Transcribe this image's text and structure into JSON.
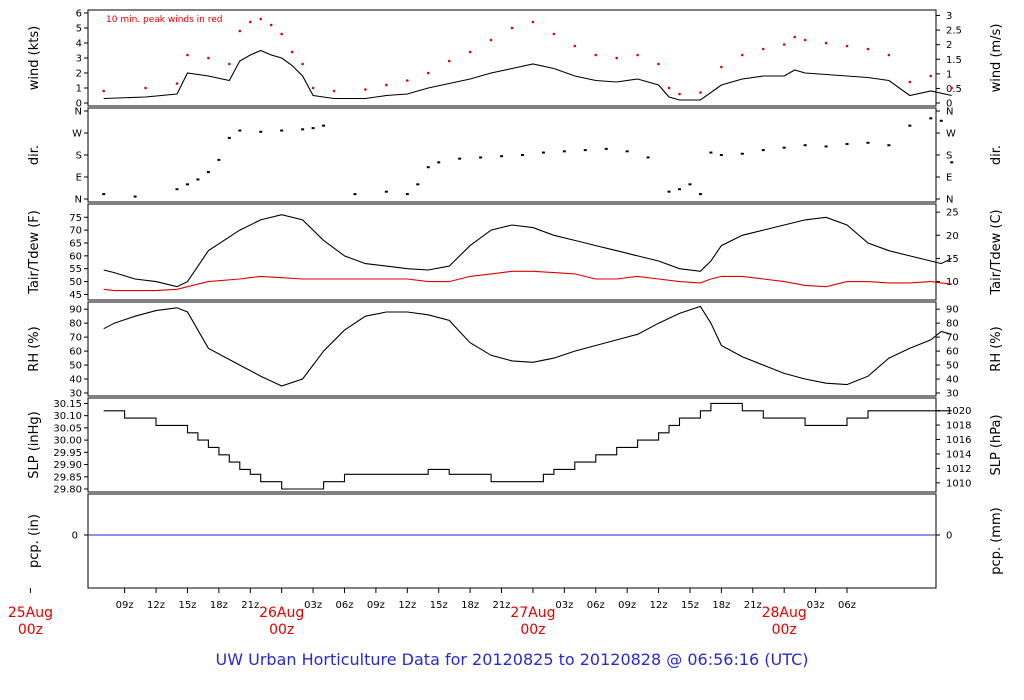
{
  "footer": "UW Urban Horticulture Data for 20120825  to  20120828 @ 06:56:16  (UTC)",
  "colors": {
    "footer": "#2a2acc",
    "date": "#e00000",
    "peak": "#e00000",
    "dew": "#e00000",
    "pcp": "#2222cc",
    "line": "#000000"
  },
  "chart_data": [
    {
      "type": "line",
      "panel": "wind",
      "ylabel": "wind (kts)",
      "ylabel_right": "wind (m/s)",
      "annotation": "10 min. peak winds in red",
      "ylim": [
        0,
        6
      ],
      "yticks": [
        "0",
        "1",
        "2",
        "3",
        "4",
        "5",
        "6"
      ],
      "yticks_right": [
        "0",
        "0.5",
        "1",
        "1.5",
        "2",
        "2.5",
        "3"
      ],
      "x_hours": [
        7,
        11,
        14,
        15,
        17,
        19,
        20,
        21,
        22,
        23,
        24,
        25,
        26,
        27,
        29,
        32,
        34,
        36,
        38,
        40,
        42,
        44,
        46,
        48,
        50,
        52,
        54,
        56,
        58,
        60,
        61,
        62,
        64,
        66,
        68,
        70,
        72,
        73,
        74,
        76,
        78,
        80,
        82,
        84,
        86,
        88
      ],
      "series": [
        {
          "name": "wind",
          "values": [
            0.3,
            0.4,
            0.6,
            2.0,
            1.8,
            1.5,
            2.8,
            3.2,
            3.5,
            3.2,
            3.0,
            2.5,
            1.8,
            0.5,
            0.3,
            0.3,
            0.5,
            0.6,
            1.0,
            1.3,
            1.6,
            2.0,
            2.3,
            2.6,
            2.3,
            1.8,
            1.5,
            1.4,
            1.6,
            1.2,
            0.4,
            0.2,
            0.2,
            1.2,
            1.6,
            1.8,
            1.8,
            2.2,
            2.0,
            1.9,
            1.8,
            1.7,
            1.5,
            0.5,
            0.8,
            0.5
          ]
        },
        {
          "name": "10 min. peak winds",
          "values": [
            0.8,
            1.0,
            1.3,
            3.2,
            3.0,
            2.6,
            4.8,
            5.4,
            5.6,
            5.2,
            4.6,
            3.4,
            2.6,
            1.0,
            0.8,
            0.9,
            1.2,
            1.5,
            2.0,
            2.8,
            3.4,
            4.2,
            5.0,
            5.4,
            4.6,
            3.8,
            3.2,
            3.0,
            3.2,
            2.6,
            1.0,
            0.6,
            0.7,
            2.4,
            3.2,
            3.6,
            3.9,
            4.4,
            4.2,
            4.0,
            3.8,
            3.6,
            3.2,
            1.4,
            1.8,
            1.0
          ]
        }
      ]
    },
    {
      "type": "scatter",
      "panel": "dir",
      "ylabel": "dir.",
      "ylabel_right": "dir.",
      "yticks": [
        "N",
        "E",
        "S",
        "W",
        "N"
      ],
      "yticks_right": [
        "N",
        "E",
        "S",
        "W",
        "N"
      ],
      "x_hours": [
        7,
        10,
        14,
        15,
        16,
        17,
        18,
        19,
        20,
        22,
        24,
        26,
        27,
        28,
        31,
        34,
        36,
        37,
        38,
        39,
        41,
        43,
        45,
        47,
        49,
        51,
        53,
        55,
        57,
        59,
        61,
        62,
        63,
        64,
        65,
        66,
        68,
        70,
        72,
        74,
        76,
        78,
        80,
        82,
        84,
        86,
        87,
        88
      ],
      "series": [
        {
          "name": "direction (deg)",
          "values": [
            20,
            10,
            40,
            60,
            80,
            110,
            160,
            250,
            280,
            275,
            280,
            285,
            290,
            300,
            20,
            30,
            20,
            60,
            130,
            150,
            165,
            170,
            175,
            180,
            190,
            195,
            200,
            205,
            195,
            170,
            30,
            40,
            60,
            20,
            190,
            180,
            185,
            200,
            210,
            220,
            215,
            225,
            230,
            220,
            300,
            330,
            320,
            150
          ]
        }
      ]
    },
    {
      "type": "line",
      "panel": "temperature",
      "ylabel": "Tair/Tdew (F)",
      "ylabel_right": "Tair/Tdew (C)",
      "ylim": [
        44,
        79
      ],
      "yticks": [
        "45",
        "50",
        "55",
        "60",
        "65",
        "70",
        "75"
      ],
      "yticks_right": [
        "10",
        "15",
        "20",
        "25"
      ],
      "x_hours": [
        7,
        8,
        10,
        12,
        14,
        15,
        17,
        20,
        22,
        24,
        26,
        28,
        30,
        32,
        34,
        36,
        38,
        40,
        42,
        44,
        46,
        48,
        50,
        52,
        54,
        56,
        58,
        60,
        62,
        64,
        65,
        66,
        68,
        70,
        72,
        74,
        76,
        78,
        80,
        82,
        84,
        86,
        87,
        88
      ],
      "series": [
        {
          "name": "Tair",
          "values": [
            54.5,
            53.5,
            51,
            50,
            48,
            50,
            62,
            70,
            74,
            76,
            74,
            66,
            60,
            57,
            56,
            55,
            54.5,
            56,
            64,
            70,
            72,
            71,
            68,
            66,
            64,
            62,
            60,
            58,
            55,
            54,
            58,
            64,
            68,
            70,
            72,
            74,
            75,
            72,
            65,
            62,
            60,
            58,
            57,
            59
          ]
        },
        {
          "name": "Tdew",
          "values": [
            47,
            46.5,
            46.5,
            46.5,
            47,
            48,
            50,
            51,
            52,
            51.5,
            51,
            51,
            51,
            51,
            51,
            51,
            50,
            50,
            52,
            53,
            54,
            54,
            53.5,
            53,
            51,
            51,
            52,
            51,
            50,
            49.5,
            51,
            52,
            52,
            51,
            50,
            48.5,
            48,
            50,
            50,
            49.5,
            49.5,
            50,
            49.5,
            49
          ]
        }
      ]
    },
    {
      "type": "line",
      "panel": "humidity",
      "ylabel": "RH (%)",
      "ylabel_right": "RH (%)",
      "ylim": [
        30,
        93
      ],
      "yticks": [
        "30",
        "40",
        "50",
        "60",
        "70",
        "80",
        "90"
      ],
      "yticks_right": [
        "30",
        "40",
        "50",
        "60",
        "70",
        "80",
        "90"
      ],
      "x_hours": [
        7,
        8,
        10,
        12,
        14,
        15,
        17,
        20,
        22,
        24,
        26,
        28,
        30,
        32,
        34,
        36,
        38,
        40,
        42,
        44,
        46,
        48,
        50,
        52,
        54,
        56,
        58,
        60,
        62,
        64,
        65,
        66,
        68,
        70,
        72,
        74,
        76,
        78,
        80,
        82,
        84,
        86,
        87,
        88
      ],
      "series": [
        {
          "name": "RH",
          "values": [
            76,
            80,
            85,
            89,
            91,
            88,
            62,
            50,
            42,
            35,
            40,
            60,
            75,
            85,
            88,
            88,
            86,
            82,
            66,
            57,
            53,
            52,
            55,
            60,
            64,
            68,
            72,
            80,
            87,
            92,
            80,
            64,
            56,
            50,
            44,
            40,
            37,
            36,
            42,
            55,
            62,
            68,
            74,
            72
          ]
        }
      ]
    },
    {
      "type": "line",
      "panel": "pressure",
      "ylabel": "SLP (inHg)",
      "ylabel_right": "SLP (hPa)",
      "ylim": [
        29.8,
        30.16
      ],
      "yticks": [
        "29.80",
        "29.85",
        "29.90",
        "29.95",
        "30.00",
        "30.05",
        "30.10",
        "30.15"
      ],
      "yticks_right": [
        "1010",
        "1012",
        "1014",
        "1016",
        "1018",
        "1020"
      ],
      "x_hours": [
        7,
        8,
        9,
        12,
        14,
        15,
        16,
        17,
        18,
        19,
        20,
        21,
        22,
        24,
        26,
        28,
        30,
        34,
        36,
        38,
        40,
        42,
        44,
        48,
        49,
        50,
        52,
        54,
        56,
        58,
        60,
        61,
        62,
        64,
        65,
        68,
        70,
        72,
        74,
        76,
        78,
        80,
        82,
        84,
        86,
        88
      ],
      "series": [
        {
          "name": "SLP",
          "values": [
            30.12,
            30.12,
            30.09,
            30.06,
            30.06,
            30.03,
            30.0,
            29.97,
            29.94,
            29.91,
            29.88,
            29.86,
            29.83,
            29.8,
            29.8,
            29.83,
            29.86,
            29.86,
            29.86,
            29.88,
            29.86,
            29.86,
            29.83,
            29.83,
            29.86,
            29.88,
            29.91,
            29.94,
            29.97,
            30.0,
            30.03,
            30.06,
            30.09,
            30.12,
            30.15,
            30.12,
            30.09,
            30.09,
            30.06,
            30.06,
            30.09,
            30.12,
            30.12,
            30.12,
            30.12,
            30.12
          ]
        }
      ]
    },
    {
      "type": "line",
      "panel": "precipitation",
      "ylabel": "pcp. (in)",
      "ylabel_right": "pcp. (mm)",
      "yticks": [
        "0"
      ],
      "yticks_right": [
        "0"
      ],
      "series": [
        {
          "name": "pcp",
          "values": [
            0,
            0
          ]
        }
      ]
    }
  ],
  "x_axis": {
    "tick_labels": [
      "09z",
      "12z",
      "15z",
      "18z",
      "21z",
      "03z",
      "06z",
      "09z",
      "12z",
      "15z",
      "18z",
      "21z",
      "03z",
      "06z",
      "09z",
      "12z",
      "15z",
      "18z",
      "21z",
      "03z",
      "06z"
    ],
    "tick_hours": [
      9,
      12,
      15,
      18,
      21,
      27,
      30,
      33,
      36,
      39,
      42,
      45,
      51,
      54,
      57,
      60,
      63,
      66,
      69,
      75,
      78
    ],
    "date_labels": [
      {
        "day": "25Aug",
        "hour": "00z",
        "at": 0
      },
      {
        "day": "26Aug",
        "hour": "00z",
        "at": 24
      },
      {
        "day": "27Aug",
        "hour": "00z",
        "at": 48
      },
      {
        "day": "28Aug",
        "hour": "00z",
        "at": 72
      }
    ]
  }
}
